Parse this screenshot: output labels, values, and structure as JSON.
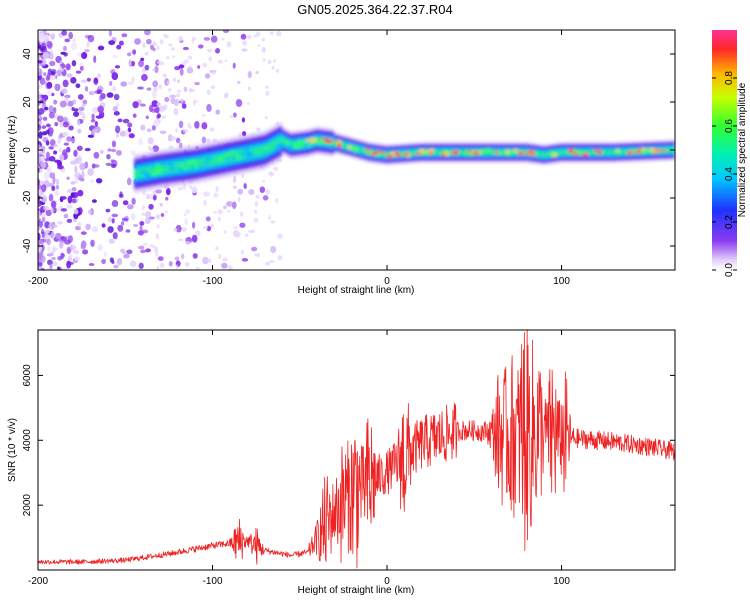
{
  "title": "GN05.2025.364.22.37.R04",
  "chart_data": [
    {
      "type": "heatmap",
      "title": "GN05.2025.364.22.37.R04",
      "xlabel": "Height of straight line (km)",
      "ylabel": "Frequency (Hz)",
      "xlim": [
        -200,
        165
      ],
      "ylim": [
        -50,
        50
      ],
      "xticks": [
        -200,
        -100,
        0,
        100
      ],
      "yticks": [
        -40,
        -20,
        0,
        20,
        40
      ],
      "colorbar": {
        "label": "Normalized spectral amplitude",
        "range": [
          0,
          1
        ],
        "ticks": [
          0.0,
          0.2,
          0.4,
          0.6,
          0.8
        ]
      },
      "ridge": {
        "x": [
          -145,
          -130,
          -110,
          -90,
          -70,
          -60,
          -55,
          -45,
          -40,
          -30,
          -20,
          -10,
          0,
          20,
          50,
          80,
          90,
          100,
          130,
          165
        ],
        "frequency": [
          -10,
          -8,
          -6,
          -3,
          0,
          4,
          2,
          3,
          4,
          3,
          1,
          -1,
          -2,
          -1,
          -1,
          -1,
          -2,
          -1,
          -1,
          0
        ]
      }
    },
    {
      "type": "line",
      "xlabel": "Height of straight line (km)",
      "ylabel": "SNR (10 * v/v)",
      "xlim": [
        -200,
        165
      ],
      "ylim": [
        0,
        7400
      ],
      "xticks": [
        -200,
        -100,
        0,
        100
      ],
      "yticks": [
        2000,
        4000,
        6000
      ],
      "series": [
        {
          "name": "SNR",
          "color": "#ee2222",
          "x": [
            -200,
            -175,
            -150,
            -125,
            -100,
            -80,
            -70,
            -55,
            -45,
            -40,
            -30,
            -20,
            -10,
            0,
            10,
            20,
            30,
            40,
            50,
            60,
            70,
            80,
            90,
            100,
            110,
            130,
            150,
            165
          ],
          "values": [
            250,
            250,
            300,
            500,
            750,
            900,
            600,
            450,
            550,
            1000,
            1800,
            2400,
            2700,
            3000,
            3500,
            3900,
            4100,
            4300,
            4300,
            4250,
            4100,
            4200,
            4300,
            4100,
            4050,
            3950,
            3800,
            3650
          ]
        }
      ]
    }
  ]
}
